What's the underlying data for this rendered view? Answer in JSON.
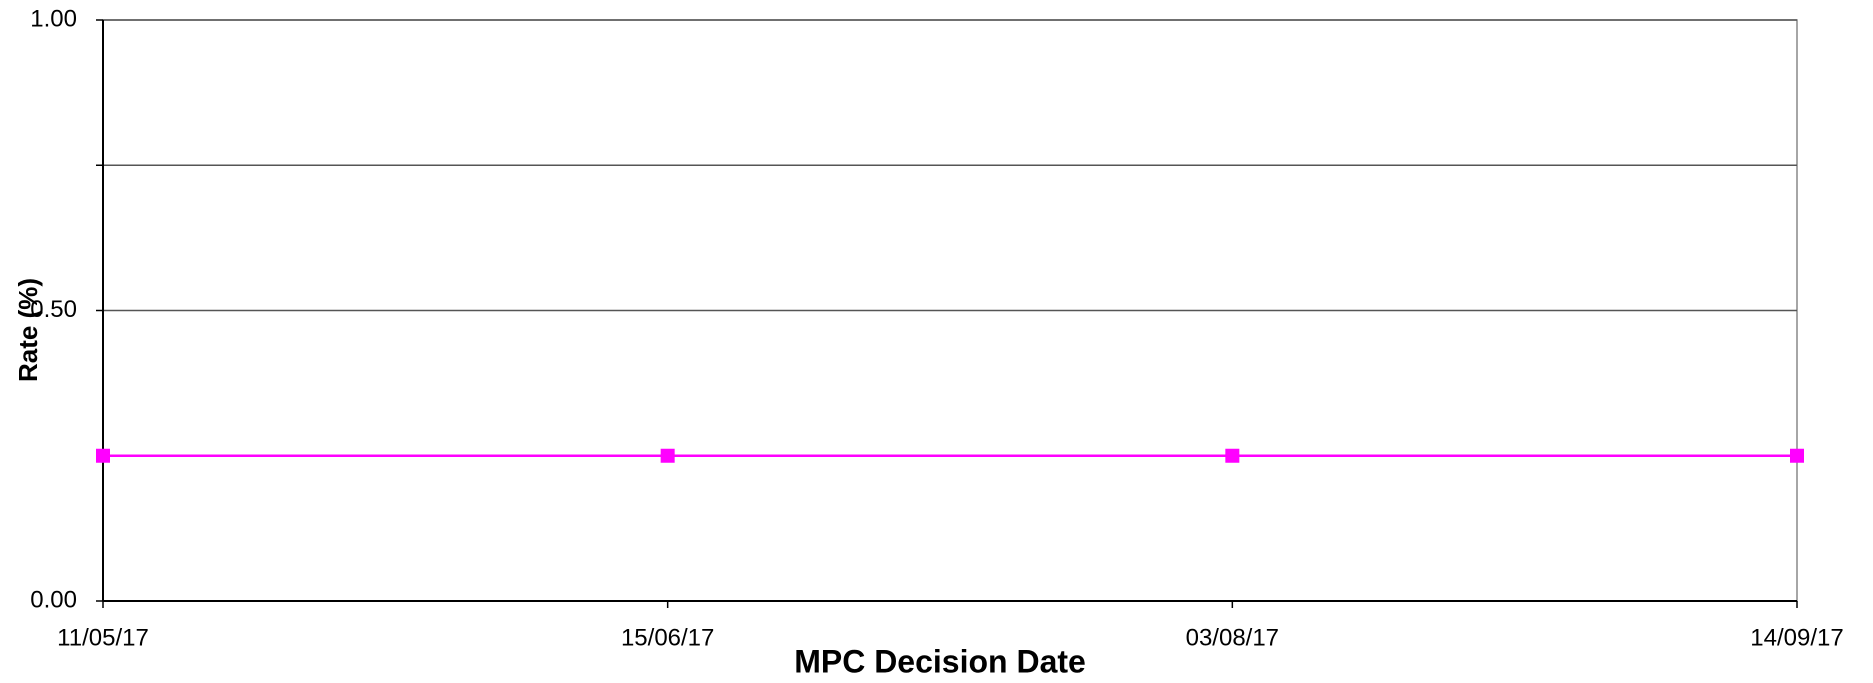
{
  "chart_data": {
    "type": "line",
    "categories": [
      "11/05/17",
      "15/06/17",
      "03/08/17",
      "14/09/17"
    ],
    "series": [
      {
        "name": null,
        "color": "#ff00ff",
        "values": [
          0.25,
          0.25,
          0.25,
          0.25
        ]
      }
    ],
    "ylim": [
      0,
      1
    ],
    "yticks": [
      {
        "value": 0,
        "label": "0.00"
      },
      {
        "value": 0.5,
        "label": "0.50"
      },
      {
        "value": 0.75,
        "label": null
      },
      {
        "value": 1,
        "label": "1.00"
      }
    ],
    "xlabel": "MPC Decision Date",
    "ylabel": "Rate (%)",
    "grid": true
  }
}
